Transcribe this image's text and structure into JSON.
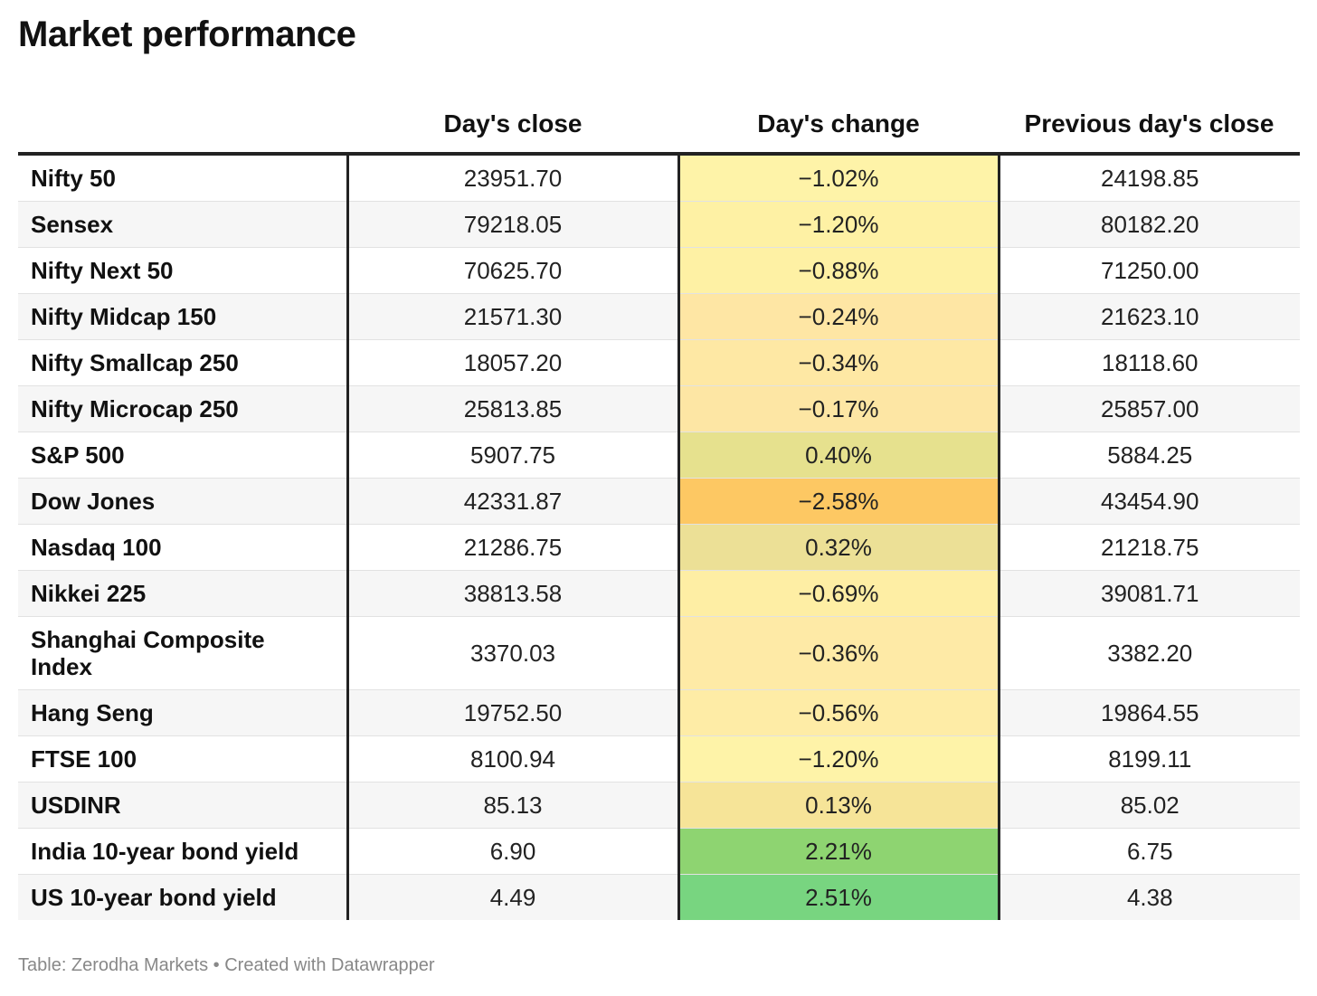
{
  "title": "Market performance",
  "footer": "Table: Zerodha Markets • Created with Datawrapper",
  "chart_data": {
    "type": "table",
    "title": "Market performance",
    "columns": [
      "",
      "Day's close",
      "Day's change",
      "Previous day's close"
    ],
    "rows": [
      {
        "name": "Nifty 50",
        "close": "23951.70",
        "change": "−1.02%",
        "change_value": -1.02,
        "prev": "24198.85",
        "color": "#fef3a8"
      },
      {
        "name": "Sensex",
        "close": "79218.05",
        "change": "−1.20%",
        "change_value": -1.2,
        "prev": "80182.20",
        "color": "#fef1a4"
      },
      {
        "name": "Nifty Next 50",
        "close": "70625.70",
        "change": "−0.88%",
        "change_value": -0.88,
        "prev": "71250.00",
        "color": "#fef1a4"
      },
      {
        "name": "Nifty Midcap 150",
        "close": "21571.30",
        "change": "−0.24%",
        "change_value": -0.24,
        "prev": "21623.10",
        "color": "#fee6a4"
      },
      {
        "name": "Nifty Smallcap 250",
        "close": "18057.20",
        "change": "−0.34%",
        "change_value": -0.34,
        "prev": "18118.60",
        "color": "#fee8a4"
      },
      {
        "name": "Nifty Microcap 250",
        "close": "25813.85",
        "change": "−0.17%",
        "change_value": -0.17,
        "prev": "25857.00",
        "color": "#fde6a4"
      },
      {
        "name": "S&P 500",
        "close": "5907.75",
        "change": "0.40%",
        "change_value": 0.4,
        "prev": "5884.25",
        "color": "#e6e18e"
      },
      {
        "name": "Dow Jones",
        "close": "42331.87",
        "change": "−2.58%",
        "change_value": -2.58,
        "prev": "43454.90",
        "color": "#fdc863"
      },
      {
        "name": "Nasdaq 100",
        "close": "21286.75",
        "change": "0.32%",
        "change_value": 0.32,
        "prev": "21218.75",
        "color": "#ece096"
      },
      {
        "name": "Nikkei 225",
        "close": "38813.58",
        "change": "−0.69%",
        "change_value": -0.69,
        "prev": "39081.71",
        "color": "#feeea4"
      },
      {
        "name": "Shanghai Composite Index",
        "close": "3370.03",
        "change": "−0.36%",
        "change_value": -0.36,
        "prev": "3382.20",
        "color": "#feeaa6",
        "tall": true
      },
      {
        "name": "Hang Seng",
        "close": "19752.50",
        "change": "−0.56%",
        "change_value": -0.56,
        "prev": "19864.55",
        "color": "#feeca6"
      },
      {
        "name": "FTSE 100",
        "close": "8100.94",
        "change": "−1.20%",
        "change_value": -1.2,
        "prev": "8199.11",
        "color": "#fef3a8"
      },
      {
        "name": "USDINR",
        "close": "85.13",
        "change": "0.13%",
        "change_value": 0.13,
        "prev": "85.02",
        "color": "#f6e498"
      },
      {
        "name": "India 10-year bond yield",
        "close": "6.90",
        "change": "2.21%",
        "change_value": 2.21,
        "prev": "6.75",
        "color": "#8ed471"
      },
      {
        "name": "US 10-year bond yield",
        "close": "4.49",
        "change": "2.51%",
        "change_value": 2.51,
        "prev": "4.38",
        "color": "#78d580"
      }
    ]
  }
}
